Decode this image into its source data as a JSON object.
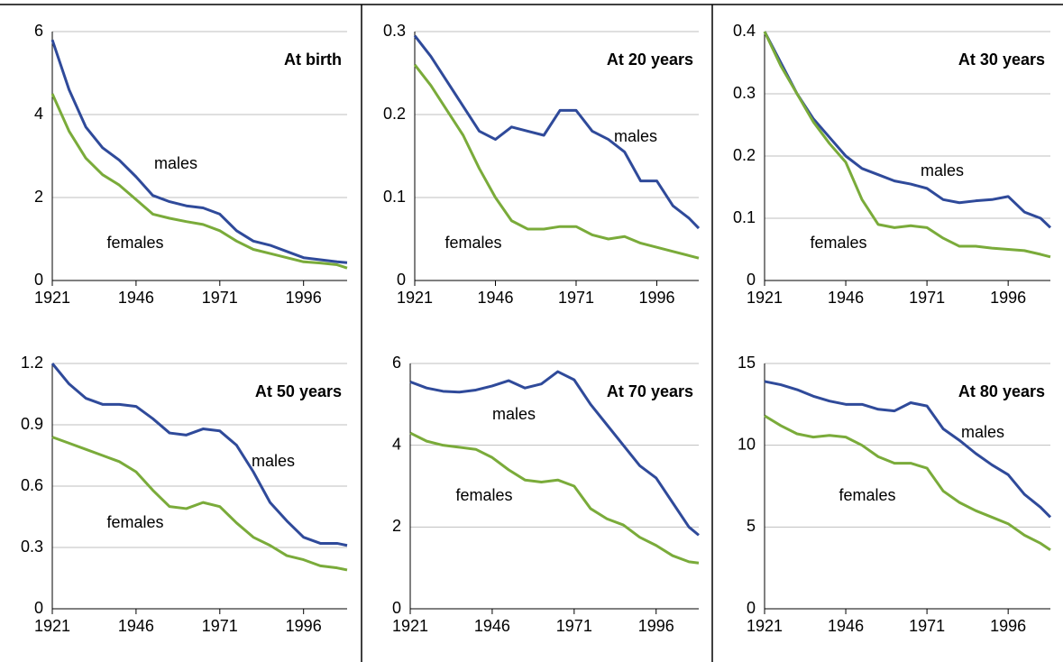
{
  "chart_data": [
    {
      "type": "line",
      "title": "At birth",
      "x": [
        1921,
        1926,
        1931,
        1936,
        1941,
        1946,
        1951,
        1956,
        1961,
        1966,
        1971,
        1976,
        1981,
        1986,
        1991,
        1996,
        2001,
        2006,
        2009
      ],
      "xlim": [
        1921,
        2009
      ],
      "xticks": [
        1921,
        1946,
        1971,
        1996
      ],
      "ylim": [
        0,
        6
      ],
      "yticks": [
        0,
        2,
        4,
        6
      ],
      "grid": true,
      "series": [
        {
          "name": "males",
          "color": "#2f4a9a",
          "values": [
            5.8,
            4.6,
            3.7,
            3.2,
            2.9,
            2.5,
            2.05,
            1.9,
            1.8,
            1.75,
            1.6,
            1.2,
            0.95,
            0.85,
            0.7,
            0.55,
            0.5,
            0.45,
            0.43
          ]
        },
        {
          "name": "females",
          "color": "#7aab3a",
          "values": [
            4.5,
            3.6,
            2.95,
            2.55,
            2.3,
            1.95,
            1.6,
            1.5,
            1.42,
            1.35,
            1.2,
            0.95,
            0.75,
            0.65,
            0.55,
            0.45,
            0.42,
            0.38,
            0.3
          ]
        }
      ]
    },
    {
      "type": "line",
      "title": "At 20 years",
      "x": [
        1921,
        1926,
        1931,
        1936,
        1941,
        1946,
        1951,
        1956,
        1961,
        1966,
        1971,
        1976,
        1981,
        1986,
        1991,
        1996,
        2001,
        2006,
        2009
      ],
      "xlim": [
        1921,
        2009
      ],
      "xticks": [
        1921,
        1946,
        1971,
        1996
      ],
      "ylim": [
        0,
        0.3
      ],
      "yticks": [
        0,
        0.1,
        0.2,
        0.3
      ],
      "grid": true,
      "series": [
        {
          "name": "males",
          "color": "#2f4a9a",
          "values": [
            0.295,
            0.27,
            0.24,
            0.21,
            0.18,
            0.17,
            0.185,
            0.18,
            0.175,
            0.205,
            0.205,
            0.18,
            0.17,
            0.155,
            0.12,
            0.12,
            0.09,
            0.075,
            0.063
          ]
        },
        {
          "name": "females",
          "color": "#7aab3a",
          "values": [
            0.26,
            0.235,
            0.205,
            0.175,
            0.135,
            0.1,
            0.072,
            0.062,
            0.062,
            0.065,
            0.065,
            0.055,
            0.05,
            0.053,
            0.045,
            0.04,
            0.035,
            0.03,
            0.027
          ]
        }
      ]
    },
    {
      "type": "line",
      "title": "At 30 years",
      "x": [
        1921,
        1926,
        1931,
        1936,
        1941,
        1946,
        1951,
        1956,
        1961,
        1966,
        1971,
        1976,
        1981,
        1986,
        1991,
        1996,
        2001,
        2006,
        2009
      ],
      "xlim": [
        1921,
        2009
      ],
      "xticks": [
        1921,
        1946,
        1971,
        1996
      ],
      "ylim": [
        0,
        0.4
      ],
      "yticks": [
        0,
        0.1,
        0.2,
        0.3,
        0.4
      ],
      "grid": true,
      "series": [
        {
          "name": "males",
          "color": "#2f4a9a",
          "values": [
            0.4,
            0.35,
            0.3,
            0.26,
            0.23,
            0.2,
            0.18,
            0.17,
            0.16,
            0.155,
            0.148,
            0.13,
            0.125,
            0.128,
            0.13,
            0.135,
            0.11,
            0.1,
            0.085
          ]
        },
        {
          "name": "females",
          "color": "#7aab3a",
          "values": [
            0.4,
            0.345,
            0.3,
            0.255,
            0.22,
            0.19,
            0.13,
            0.09,
            0.085,
            0.088,
            0.085,
            0.068,
            0.055,
            0.055,
            0.052,
            0.05,
            0.048,
            0.042,
            0.038
          ]
        }
      ]
    },
    {
      "type": "line",
      "title": "At 50 years",
      "x": [
        1921,
        1926,
        1931,
        1936,
        1941,
        1946,
        1951,
        1956,
        1961,
        1966,
        1971,
        1976,
        1981,
        1986,
        1991,
        1996,
        2001,
        2006,
        2009
      ],
      "xlim": [
        1921,
        2009
      ],
      "xticks": [
        1921,
        1946,
        1971,
        1996
      ],
      "ylim": [
        0,
        1.2
      ],
      "yticks": [
        0,
        0.3,
        0.6,
        0.9,
        1.2
      ],
      "grid": true,
      "series": [
        {
          "name": "males",
          "color": "#2f4a9a",
          "values": [
            1.2,
            1.1,
            1.03,
            1.0,
            1.0,
            0.99,
            0.93,
            0.86,
            0.85,
            0.88,
            0.87,
            0.8,
            0.67,
            0.52,
            0.43,
            0.35,
            0.32,
            0.32,
            0.31
          ]
        },
        {
          "name": "females",
          "color": "#7aab3a",
          "values": [
            0.84,
            0.81,
            0.78,
            0.75,
            0.72,
            0.67,
            0.58,
            0.5,
            0.49,
            0.52,
            0.5,
            0.42,
            0.35,
            0.31,
            0.26,
            0.24,
            0.21,
            0.2,
            0.19
          ]
        }
      ]
    },
    {
      "type": "line",
      "title": "At 70 years",
      "x": [
        1921,
        1926,
        1931,
        1936,
        1941,
        1946,
        1951,
        1956,
        1961,
        1966,
        1971,
        1976,
        1981,
        1986,
        1991,
        1996,
        2001,
        2006,
        2009
      ],
      "xlim": [
        1921,
        2009
      ],
      "xticks": [
        1921,
        1946,
        1971,
        1996
      ],
      "ylim": [
        0,
        6
      ],
      "yticks": [
        0,
        2,
        4,
        6
      ],
      "grid": true,
      "series": [
        {
          "name": "males",
          "color": "#2f4a9a",
          "values": [
            5.55,
            5.4,
            5.32,
            5.3,
            5.35,
            5.45,
            5.58,
            5.4,
            5.5,
            5.8,
            5.6,
            5.0,
            4.5,
            4.0,
            3.5,
            3.2,
            2.6,
            2.0,
            1.8
          ]
        },
        {
          "name": "females",
          "color": "#7aab3a",
          "values": [
            4.3,
            4.1,
            4.0,
            3.95,
            3.9,
            3.7,
            3.4,
            3.15,
            3.1,
            3.15,
            3.0,
            2.45,
            2.2,
            2.05,
            1.75,
            1.55,
            1.3,
            1.15,
            1.12
          ]
        }
      ]
    },
    {
      "type": "line",
      "title": "At 80 years",
      "x": [
        1921,
        1926,
        1931,
        1936,
        1941,
        1946,
        1951,
        1956,
        1961,
        1966,
        1971,
        1976,
        1981,
        1986,
        1991,
        1996,
        2001,
        2006,
        2009
      ],
      "xlim": [
        1921,
        2009
      ],
      "xticks": [
        1921,
        1946,
        1971,
        1996
      ],
      "ylim": [
        0,
        15
      ],
      "yticks": [
        0,
        5,
        10,
        15
      ],
      "grid": true,
      "series": [
        {
          "name": "males",
          "color": "#2f4a9a",
          "values": [
            13.9,
            13.7,
            13.4,
            13.0,
            12.7,
            12.5,
            12.5,
            12.2,
            12.1,
            12.6,
            12.4,
            11.0,
            10.3,
            9.5,
            8.8,
            8.2,
            7.0,
            6.2,
            5.6
          ]
        },
        {
          "name": "females",
          "color": "#7aab3a",
          "values": [
            11.8,
            11.2,
            10.7,
            10.5,
            10.6,
            10.5,
            10.0,
            9.3,
            8.9,
            8.9,
            8.6,
            7.2,
            6.5,
            6.0,
            5.6,
            5.2,
            4.5,
            4.0,
            3.6
          ]
        }
      ]
    }
  ]
}
